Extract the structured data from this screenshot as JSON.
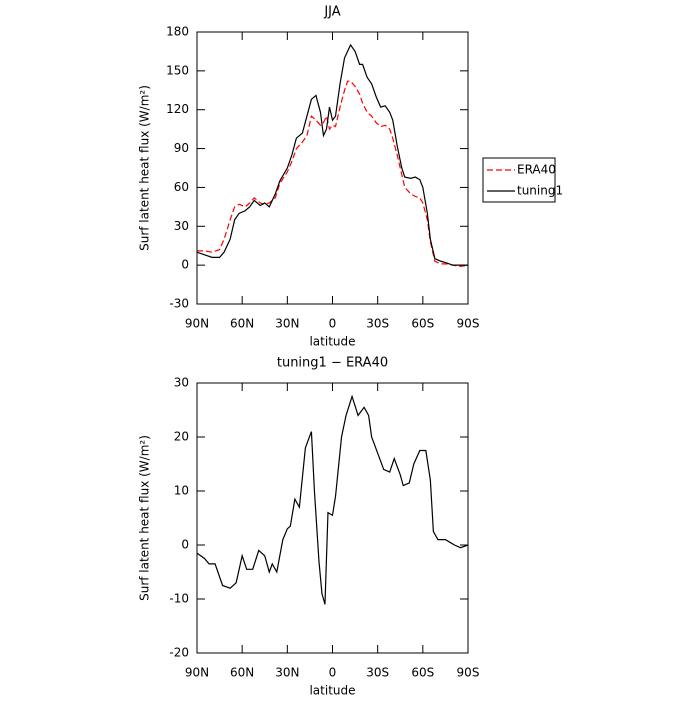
{
  "chart_data": [
    {
      "type": "line",
      "title": "JJA",
      "xlabel": "latitude",
      "ylabel": "Surf latent heat flux (W/m²)",
      "x": [
        90,
        85,
        80,
        75,
        72,
        68,
        65,
        62,
        58,
        55,
        52,
        48,
        45,
        42,
        38,
        35,
        30,
        27,
        24,
        20,
        17,
        14,
        11,
        8,
        6,
        4,
        2,
        0,
        -2,
        -5,
        -8,
        -10,
        -12,
        -15,
        -18,
        -20,
        -23,
        -26,
        -29,
        -32,
        -35,
        -38,
        -40,
        -43,
        -46,
        -48,
        -52,
        -55,
        -58,
        -60,
        -63,
        -65,
        -68,
        -72,
        -75,
        -80,
        -85,
        -90
      ],
      "series": [
        {
          "name": "ERA40",
          "color": "#ff0000",
          "linestyle": "dashed",
          "values": [
            11,
            11,
            10,
            12,
            20,
            35,
            45,
            47,
            45,
            48,
            52,
            48,
            47,
            48,
            52,
            63,
            72,
            80,
            90,
            95,
            100,
            115,
            112,
            108,
            110,
            115,
            105,
            108,
            107,
            122,
            135,
            142,
            142,
            138,
            132,
            125,
            118,
            115,
            110,
            107,
            108,
            105,
            98,
            85,
            70,
            60,
            55,
            53,
            52,
            48,
            35,
            18,
            3,
            1,
            1,
            0,
            -1,
            0
          ]
        },
        {
          "name": "tuning1",
          "color": "#000000",
          "linestyle": "solid",
          "values": [
            10,
            8,
            6,
            6,
            10,
            20,
            35,
            40,
            42,
            45,
            50,
            46,
            48,
            45,
            55,
            65,
            75,
            85,
            98,
            102,
            115,
            128,
            131,
            118,
            100,
            105,
            122,
            112,
            115,
            140,
            160,
            165,
            170,
            165,
            155,
            155,
            145,
            140,
            130,
            122,
            123,
            118,
            112,
            92,
            75,
            68,
            67,
            68,
            66,
            60,
            40,
            20,
            5,
            3,
            2,
            0,
            0,
            0
          ]
        }
      ],
      "xlim": [
        90,
        -90
      ],
      "xticks": [
        {
          "value": 90,
          "label": "90N"
        },
        {
          "value": 60,
          "label": "60N"
        },
        {
          "value": 30,
          "label": "30N"
        },
        0,
        {
          "value": -30,
          "label": "30S"
        },
        {
          "value": -60,
          "label": "60S"
        },
        {
          "value": -90,
          "label": "90S"
        }
      ],
      "ylim": [
        -30,
        180
      ],
      "yticks": [
        -30,
        0,
        30,
        60,
        90,
        120,
        150,
        180
      ],
      "legend": "right"
    },
    {
      "type": "line",
      "title": "tuning1 − ERA40",
      "xlabel": "latitude",
      "ylabel": "Surf latent heat flux (W/m²)",
      "x": [
        90,
        85,
        82,
        78,
        73,
        68,
        64,
        60,
        57,
        53,
        49,
        45,
        42,
        40,
        37,
        33,
        30,
        28,
        25,
        22,
        18,
        14,
        12,
        9,
        7,
        5,
        3,
        0,
        -2,
        -6,
        -9,
        -13,
        -17,
        -21,
        -24,
        -26,
        -30,
        -34,
        -38,
        -41,
        -45,
        -47,
        -51,
        -54,
        -58,
        -62,
        -65,
        -67,
        -70,
        -75,
        -78,
        -81,
        -85,
        -90
      ],
      "series": [
        {
          "color": "#000000",
          "linestyle": "solid",
          "values": [
            -1.5,
            -2.5,
            -3.5,
            -3.5,
            -7.5,
            -8,
            -7,
            -2,
            -4.5,
            -4.5,
            -1,
            -2,
            -5,
            -3.5,
            -5,
            1,
            3,
            3.5,
            8.5,
            7,
            18,
            21,
            10,
            -3,
            -9,
            -11,
            6,
            5.5,
            9,
            20,
            24,
            27.5,
            24,
            25.5,
            24,
            20,
            17,
            14,
            13.5,
            16,
            13,
            11,
            11.5,
            15,
            17.5,
            17.5,
            12,
            2.5,
            1,
            1,
            0.5,
            0,
            -0.5,
            0
          ]
        }
      ],
      "xlim": [
        90,
        -90
      ],
      "xticks": [
        {
          "value": 90,
          "label": "90N"
        },
        {
          "value": 60,
          "label": "60N"
        },
        {
          "value": 30,
          "label": "30N"
        },
        0,
        {
          "value": -30,
          "label": "30S"
        },
        {
          "value": -60,
          "label": "60S"
        },
        {
          "value": -90,
          "label": "90S"
        }
      ],
      "ylim": [
        -20,
        30
      ],
      "yticks": [
        -20,
        -10,
        0,
        10,
        20,
        30
      ]
    }
  ]
}
